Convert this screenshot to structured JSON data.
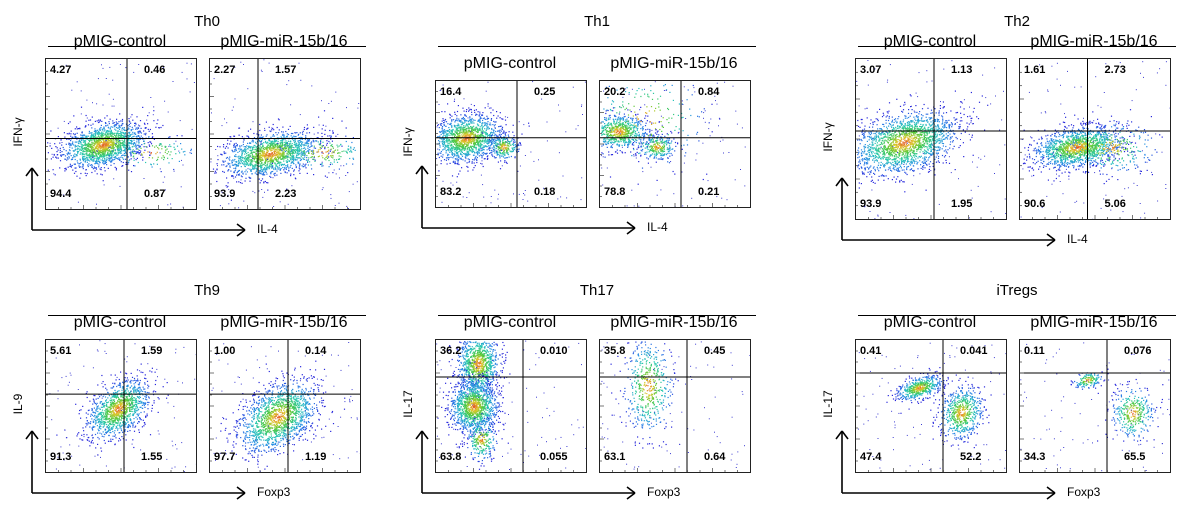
{
  "conditions": [
    "pMIG-control",
    "pMIG-miR-15b/16"
  ],
  "panels": [
    {
      "title": "Th0",
      "ylabel": "IFN-γ",
      "xlabel": "IL-4",
      "pattern": "th0",
      "plots": [
        {
          "condition": "pMIG-control",
          "ul": "4.27",
          "ur": "0.46",
          "ll": "94.4",
          "lr": "0.87"
        },
        {
          "condition": "pMIG-miR-15b/16",
          "ul": "2.27",
          "ur": "1.57",
          "ll": "93.9",
          "lr": "2.23"
        }
      ]
    },
    {
      "title": "Th1",
      "ylabel": "IFN-γ",
      "xlabel": "IL-4",
      "pattern": "th1",
      "plots": [
        {
          "condition": "pMIG-control",
          "ul": "16.4",
          "ur": "0.25",
          "ll": "83.2",
          "lr": "0.18"
        },
        {
          "condition": "pMIG-miR-15b/16",
          "ul": "20.2",
          "ur": "0.84",
          "ll": "78.8",
          "lr": "0.21"
        }
      ]
    },
    {
      "title": "Th2",
      "ylabel": "IFN-γ",
      "xlabel": "IL-4",
      "pattern": "th2",
      "plots": [
        {
          "condition": "pMIG-control",
          "ul": "3.07",
          "ur": "1.13",
          "ll": "93.9",
          "lr": "1.95"
        },
        {
          "condition": "pMIG-miR-15b/16",
          "ul": "1.61",
          "ur": "2.73",
          "ll": "90.6",
          "lr": "5.06"
        }
      ]
    },
    {
      "title": "Th9",
      "ylabel": "IL-9",
      "xlabel": "Foxp3",
      "pattern": "th9",
      "plots": [
        {
          "condition": "pMIG-control",
          "ul": "5.61",
          "ur": "1.59",
          "ll": "91.3",
          "lr": "1.55"
        },
        {
          "condition": "pMIG-miR-15b/16",
          "ul": "1.00",
          "ur": "0.14",
          "ll": "97.7",
          "lr": "1.19"
        }
      ]
    },
    {
      "title": "Th17",
      "ylabel": "IL-17",
      "xlabel": "Foxp3",
      "pattern": "th17",
      "plots": [
        {
          "condition": "pMIG-control",
          "ul": "36.2",
          "ur": "0.010",
          "ll": "63.8",
          "lr": "0.055"
        },
        {
          "condition": "pMIG-miR-15b/16",
          "ul": "35.8",
          "ur": "0.45",
          "ll": "63.1",
          "lr": "0.64"
        }
      ]
    },
    {
      "title": "iTregs",
      "ylabel": "IL-17",
      "xlabel": "Foxp3",
      "pattern": "itreg",
      "plots": [
        {
          "condition": "pMIG-control",
          "ul": "0.41",
          "ur": "0.041",
          "ll": "47.4",
          "lr": "52.2"
        },
        {
          "condition": "pMIG-miR-15b/16",
          "ul": "0.11",
          "ur": "0.076",
          "ll": "34.3",
          "lr": "65.5"
        }
      ]
    }
  ]
}
